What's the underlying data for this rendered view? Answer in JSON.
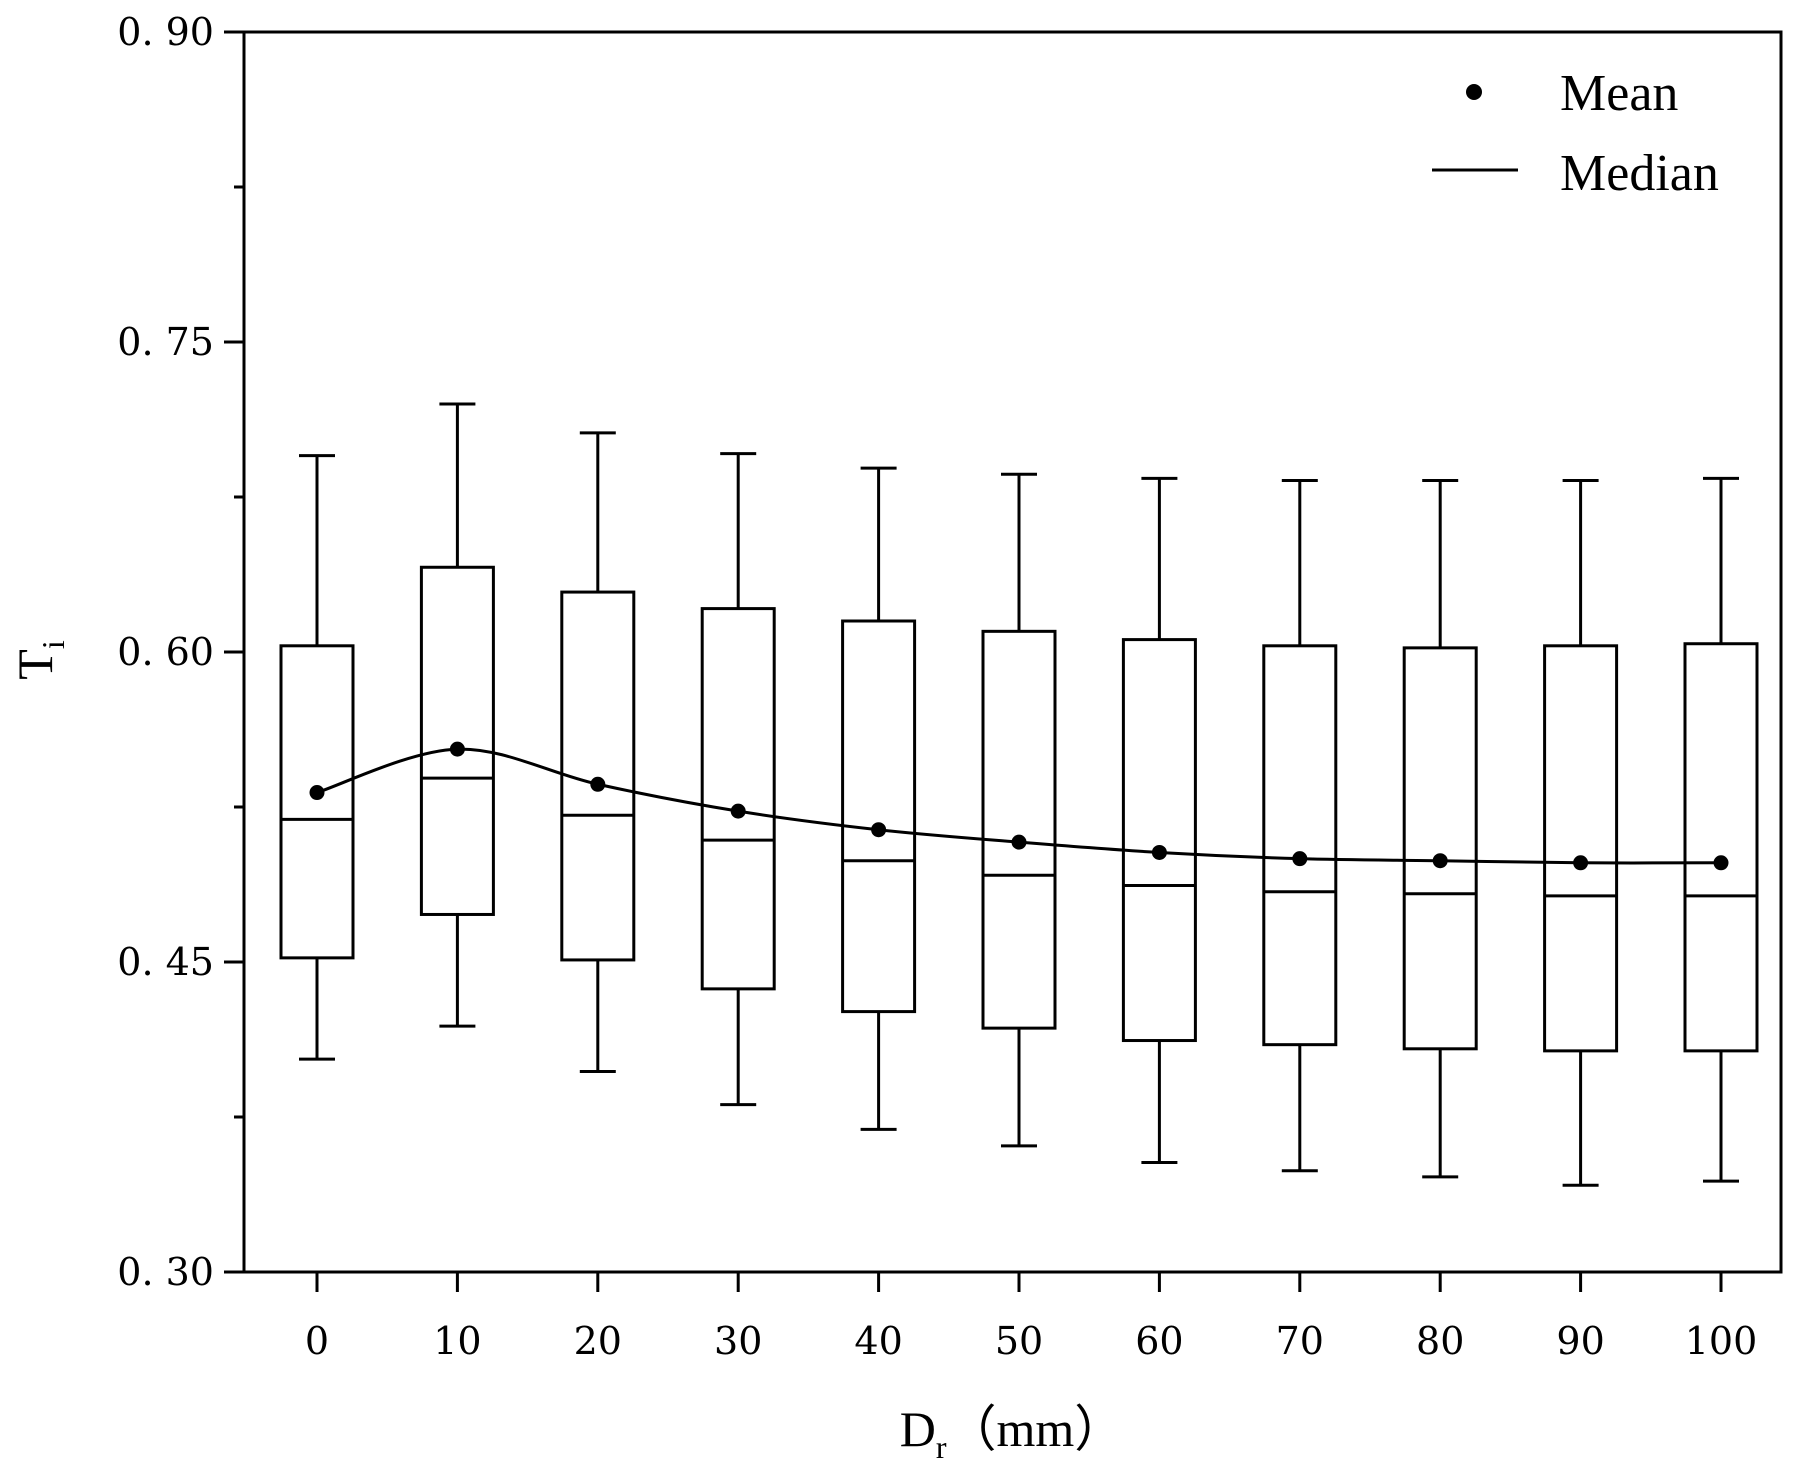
{
  "chart_data": {
    "type": "box",
    "title": "",
    "xlabel": {
      "main": "D",
      "sub": "r",
      "unit": "（mm）"
    },
    "ylabel": {
      "main": "T",
      "sub": "i"
    },
    "categories": [
      "0",
      "10",
      "20",
      "30",
      "40",
      "50",
      "60",
      "70",
      "80",
      "90",
      "100"
    ],
    "x": [
      0,
      10,
      20,
      30,
      40,
      50,
      60,
      70,
      80,
      90,
      100
    ],
    "ylim": [
      0.3,
      0.9
    ],
    "yticks": [
      0.3,
      0.45,
      0.6,
      0.75,
      0.9
    ],
    "ytick_labels": [
      "0. 30",
      "0. 45",
      "0. 60",
      "0. 75",
      "0. 90"
    ],
    "boxes": [
      {
        "min": 0.403,
        "q1": 0.452,
        "median": 0.519,
        "q3": 0.603,
        "max": 0.695,
        "mean": 0.532
      },
      {
        "min": 0.419,
        "q1": 0.473,
        "median": 0.539,
        "q3": 0.641,
        "max": 0.72,
        "mean": 0.553
      },
      {
        "min": 0.397,
        "q1": 0.451,
        "median": 0.521,
        "q3": 0.629,
        "max": 0.706,
        "mean": 0.536
      },
      {
        "min": 0.381,
        "q1": 0.437,
        "median": 0.509,
        "q3": 0.621,
        "max": 0.696,
        "mean": 0.523
      },
      {
        "min": 0.369,
        "q1": 0.426,
        "median": 0.499,
        "q3": 0.615,
        "max": 0.689,
        "mean": 0.514
      },
      {
        "min": 0.361,
        "q1": 0.418,
        "median": 0.492,
        "q3": 0.61,
        "max": 0.686,
        "mean": 0.508
      },
      {
        "min": 0.353,
        "q1": 0.412,
        "median": 0.487,
        "q3": 0.606,
        "max": 0.684,
        "mean": 0.503
      },
      {
        "min": 0.349,
        "q1": 0.41,
        "median": 0.484,
        "q3": 0.603,
        "max": 0.683,
        "mean": 0.5
      },
      {
        "min": 0.346,
        "q1": 0.408,
        "median": 0.483,
        "q3": 0.602,
        "max": 0.683,
        "mean": 0.499
      },
      {
        "min": 0.342,
        "q1": 0.407,
        "median": 0.482,
        "q3": 0.603,
        "max": 0.683,
        "mean": 0.498
      },
      {
        "min": 0.344,
        "q1": 0.407,
        "median": 0.482,
        "q3": 0.604,
        "max": 0.684,
        "mean": 0.498
      }
    ],
    "series": [
      {
        "name": "Mean",
        "values": [
          0.532,
          0.553,
          0.536,
          0.523,
          0.514,
          0.508,
          0.503,
          0.5,
          0.499,
          0.498,
          0.498
        ]
      }
    ],
    "legend": {
      "position": "top-right",
      "entries": [
        {
          "label": "Mean",
          "marker": "dot"
        },
        {
          "label": "Median",
          "marker": "line"
        }
      ]
    },
    "grid": false,
    "colors": {
      "stroke": "#000000",
      "background": "#ffffff"
    }
  }
}
